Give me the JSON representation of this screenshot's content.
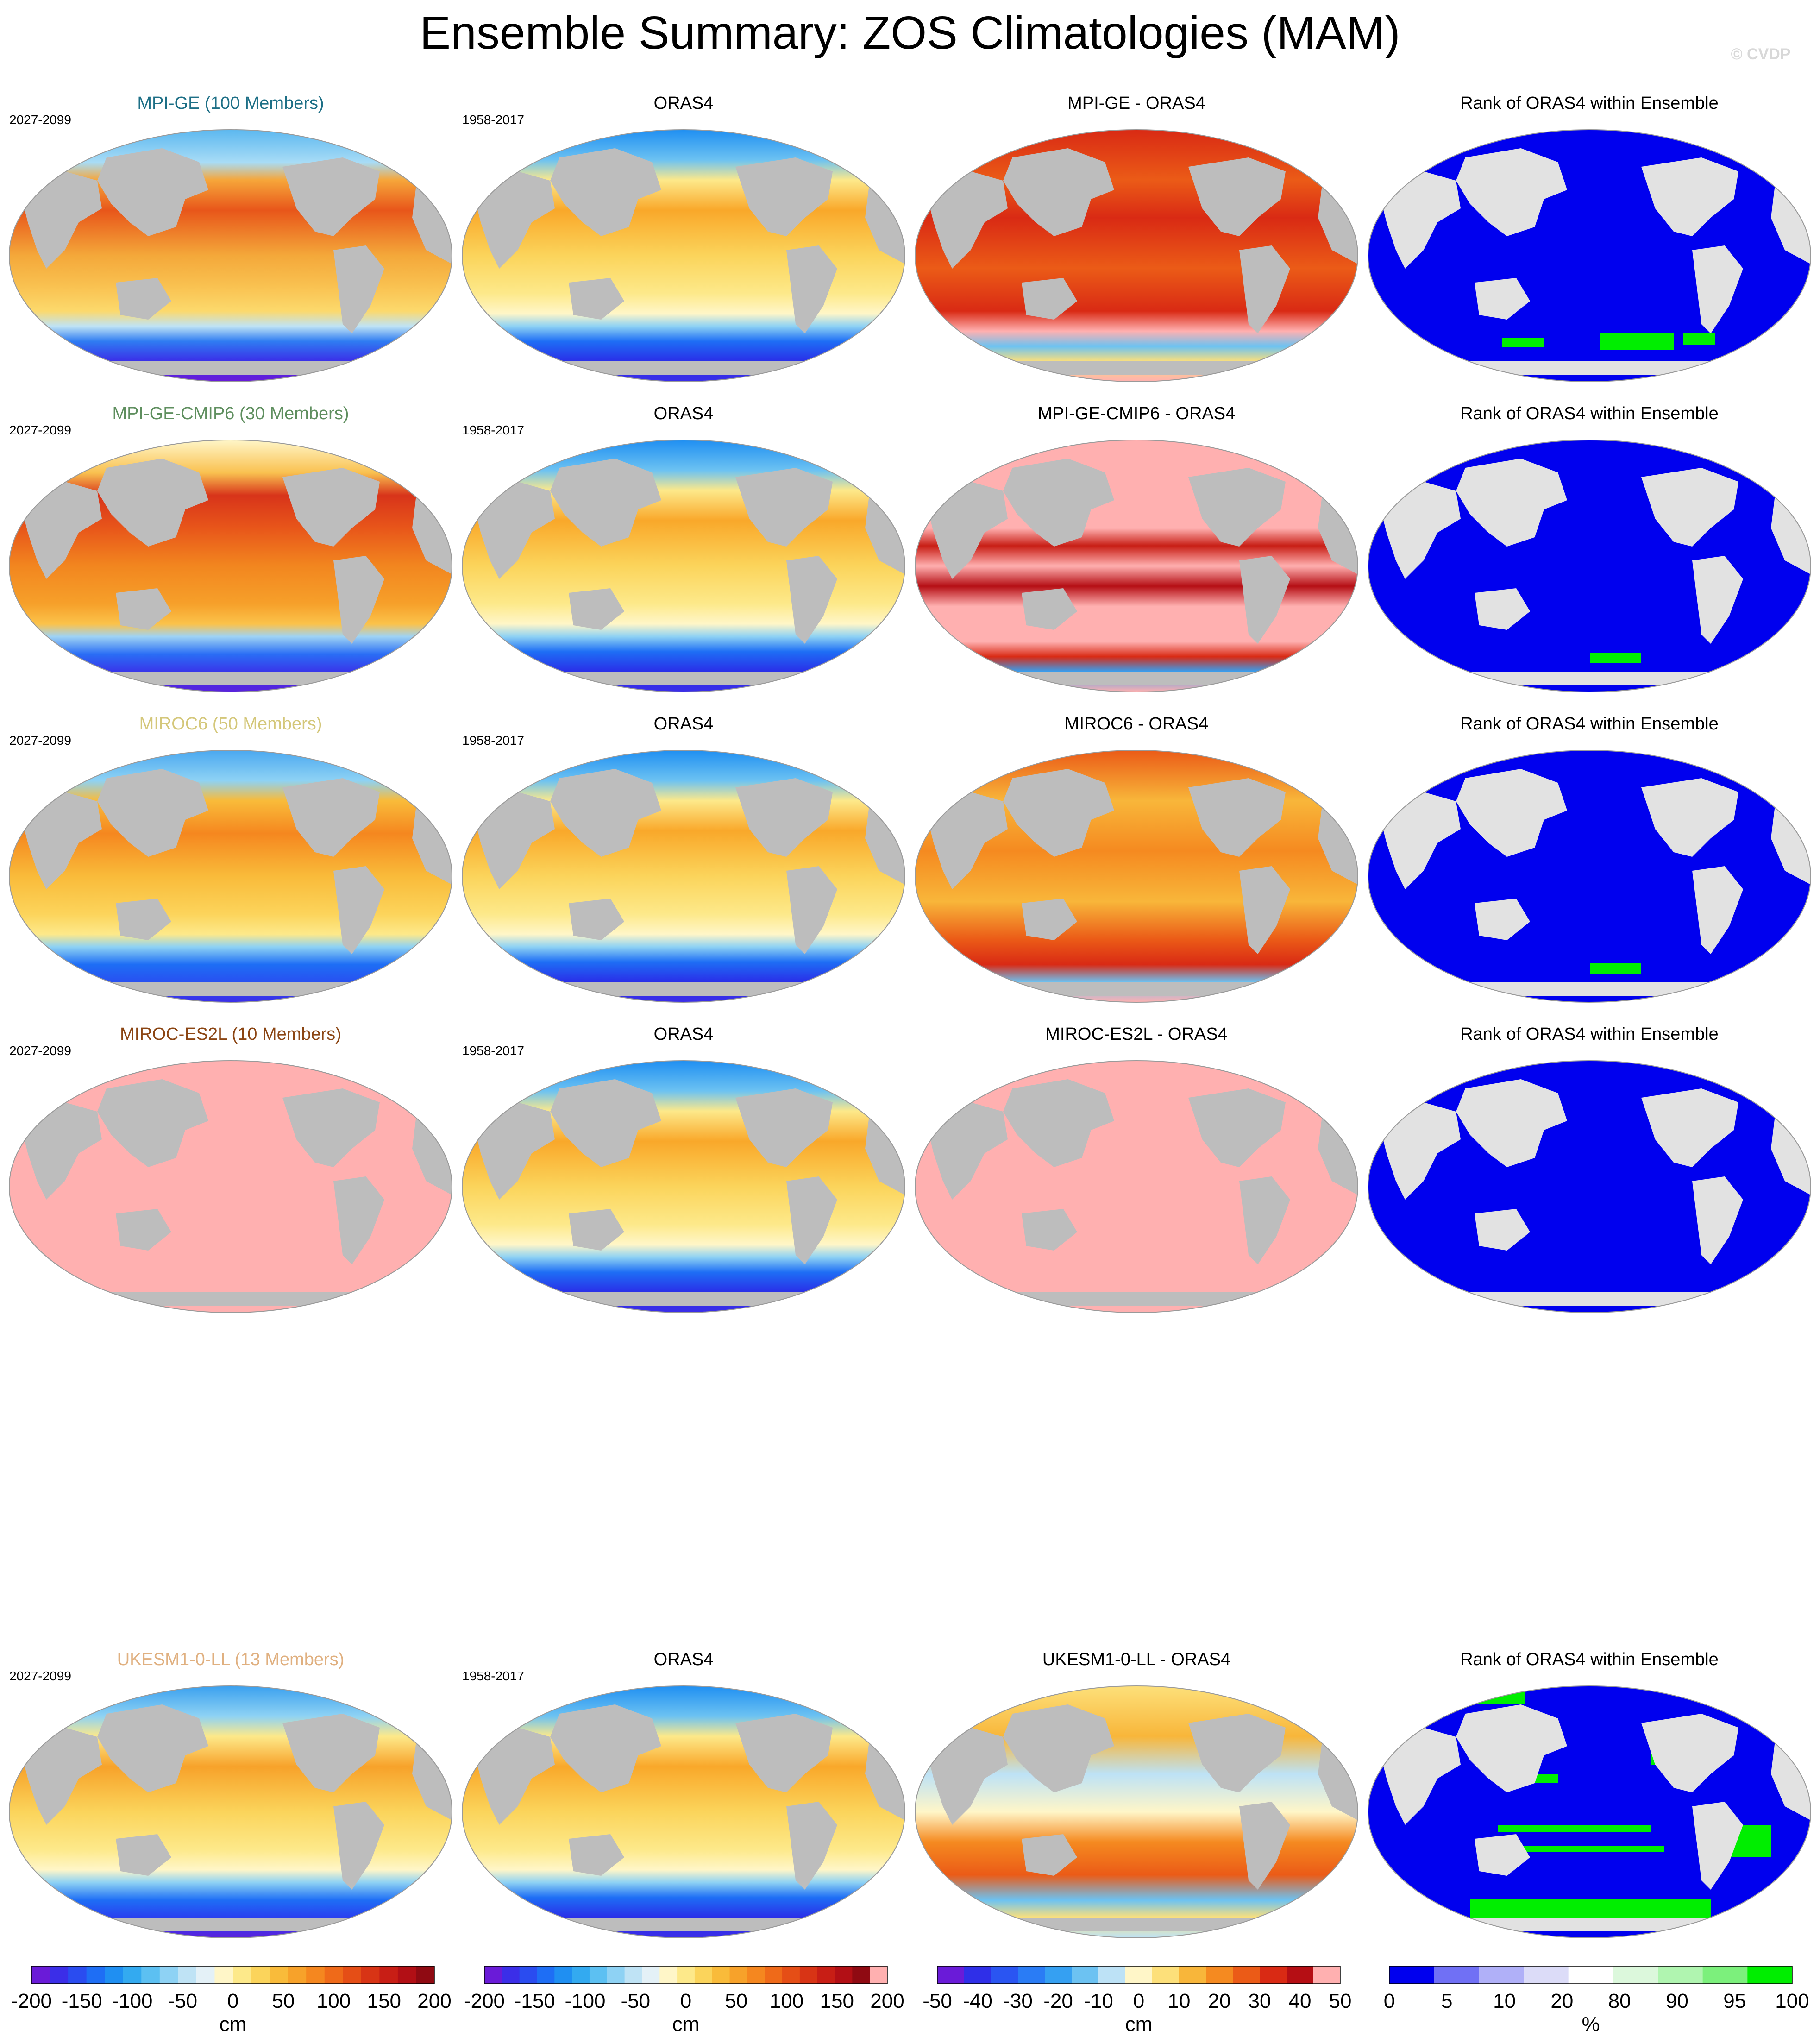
{
  "title": "Ensemble Summary: ZOS Climatologies (MAM)",
  "copyright": "© CVDP",
  "colors": {
    "land": "#bdbdbd",
    "rank_land": "#e2e2e2",
    "ocean_edge": "#9a9a9a"
  },
  "chart_data": [
    {
      "type": "heatmap",
      "rows": [
        {
          "model": "MPI-GE (100 Members)",
          "model_color": "#1d6f86",
          "model_period": "2027-2099",
          "model_field": "warm_strong",
          "obs_title": "ORAS4",
          "obs_period": "1958-2017",
          "diff_title": "MPI-GE - ORAS4",
          "diff_field": "diff_warm",
          "rank_title": "Rank of ORAS4 within Ensemble",
          "rank_field": "rank_some_green"
        },
        {
          "model": "MPI-GE-CMIP6 (30 Members)",
          "model_color": "#5f8f5f",
          "model_period": "2027-2099",
          "model_field": "warm_strongest",
          "obs_title": "ORAS4",
          "obs_period": "1958-2017",
          "diff_title": "MPI-GE-CMIP6 - ORAS4",
          "diff_field": "diff_pink_bands",
          "rank_title": "Rank of ORAS4 within Ensemble",
          "rank_field": "rank_little_green"
        },
        {
          "model": "MIROC6 (50 Members)",
          "model_color": "#d4c77a",
          "model_period": "2027-2099",
          "model_field": "warm_moderate",
          "obs_title": "ORAS4",
          "obs_period": "1958-2017",
          "diff_title": "MIROC6 - ORAS4",
          "diff_field": "diff_orange",
          "rank_title": "Rank of ORAS4 within Ensemble",
          "rank_field": "rank_little_green"
        },
        {
          "model": "MIROC-ES2L (10 Members)",
          "model_color": "#8b4513",
          "model_period": "2027-2099",
          "model_field": "pink_flat",
          "obs_title": "ORAS4",
          "obs_period": "1958-2017",
          "diff_title": "MIROC-ES2L - ORAS4",
          "diff_field": "pink_flat",
          "rank_title": "Rank of ORAS4 within Ensemble",
          "rank_field": "rank_all_blue"
        },
        {
          "model": "UKESM1-0-LL (13 Members)",
          "model_color": "#e0b080",
          "model_period": "2027-2099",
          "model_field": "obs_like",
          "obs_title": "ORAS4",
          "obs_period": "1958-2017",
          "diff_title": "UKESM1-0-LL - ORAS4",
          "diff_field": "diff_mixed",
          "rank_title": "Rank of ORAS4 within Ensemble",
          "rank_field": "rank_much_green"
        }
      ],
      "colorbars": [
        {
          "unit": "cm",
          "range": [
            -200,
            200
          ],
          "ticks": [
            "-200",
            "-150",
            "-100",
            "-50",
            "0",
            "50",
            "100",
            "150",
            "200"
          ],
          "colors": [
            "#6a1bd8",
            "#3b2ee8",
            "#2a4cf0",
            "#1e6ef5",
            "#1f8ff2",
            "#33aaf0",
            "#5cc0f2",
            "#8ed2f4",
            "#bfe3f5",
            "#e4f1f7",
            "#fff6c8",
            "#fde98a",
            "#fbd45b",
            "#f9bb3a",
            "#f7a22a",
            "#f5871f",
            "#ef6a19",
            "#e54e16",
            "#d83415",
            "#c81e15",
            "#b20f15",
            "#8f0a12"
          ]
        },
        {
          "unit": "cm",
          "range": [
            -200,
            200
          ],
          "ticks": [
            "-200",
            "-150",
            "-100",
            "-50",
            "0",
            "50",
            "100",
            "150",
            "200"
          ],
          "colors": [
            "#6a1bd8",
            "#3b2ee8",
            "#2a4cf0",
            "#1e6ef5",
            "#1f8ff2",
            "#33aaf0",
            "#5cc0f2",
            "#8ed2f4",
            "#bfe3f5",
            "#e4f1f7",
            "#fff6c8",
            "#fde98a",
            "#fbd45b",
            "#f9bb3a",
            "#f7a22a",
            "#f5871f",
            "#ef6a19",
            "#e54e16",
            "#d83415",
            "#c81e15",
            "#b20f15",
            "#8f0a12",
            "#ffb0b0"
          ]
        },
        {
          "unit": "cm",
          "range": [
            -50,
            50
          ],
          "ticks": [
            "-50",
            "-40",
            "-30",
            "-20",
            "-10",
            "0",
            "10",
            "20",
            "30",
            "40",
            "50"
          ],
          "colors": [
            "#6a1bd8",
            "#2f2fe8",
            "#2a55f2",
            "#2a7cf5",
            "#35a0f2",
            "#6cc2f2",
            "#bde2f6",
            "#fff6c8",
            "#fde07a",
            "#f8b63a",
            "#f58a20",
            "#eb5b17",
            "#d92a14",
            "#b50e14",
            "#ffb0b0"
          ]
        },
        {
          "unit": "%",
          "range": [
            0,
            100
          ],
          "ticks": [
            "0",
            "5",
            "10",
            "20",
            "80",
            "90",
            "95",
            "100"
          ],
          "colors": [
            "#0000ee",
            "#7070f5",
            "#b0b0f8",
            "#dcdcf8",
            "#ffffff",
            "#dcf8dc",
            "#b0f5b0",
            "#7cf07c",
            "#00ee00"
          ]
        }
      ]
    }
  ]
}
